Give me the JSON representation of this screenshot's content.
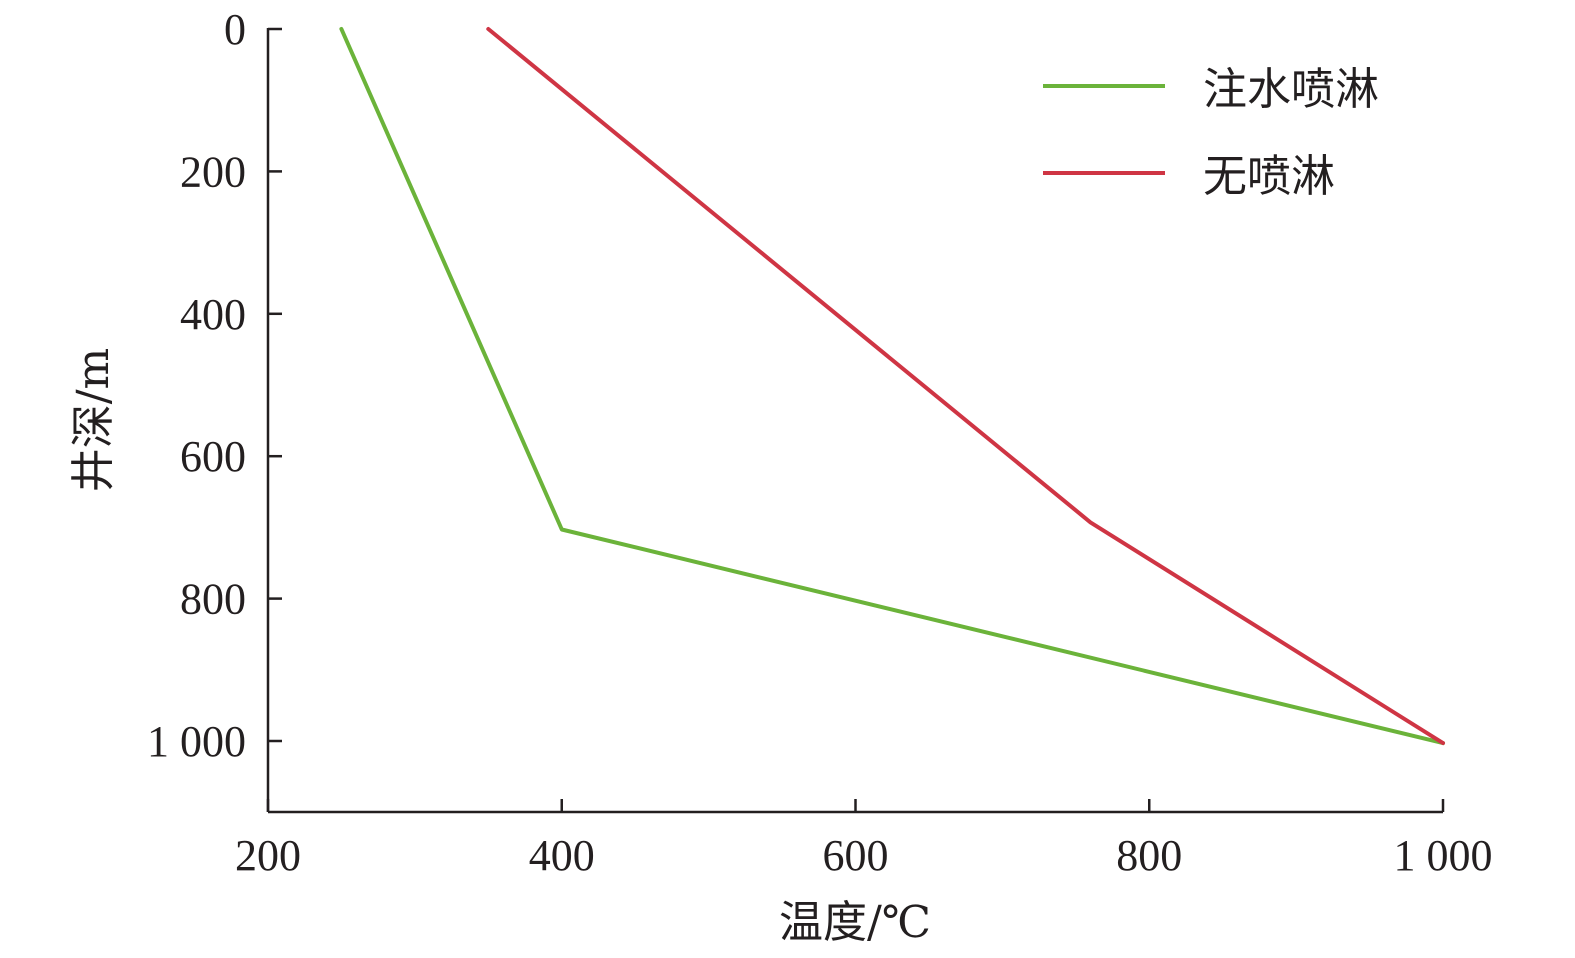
{
  "chart_data": {
    "type": "line",
    "xlabel": "温度/℃",
    "ylabel": "井深/m",
    "xlim": [
      200,
      1000
    ],
    "ylim": [
      0,
      1100
    ],
    "y_inverted": true,
    "x_ticks": [
      200,
      400,
      600,
      800,
      1000
    ],
    "x_tick_labels": [
      "200",
      "400",
      "600",
      "800",
      "1 000"
    ],
    "y_ticks": [
      0,
      200,
      400,
      600,
      800,
      1000
    ],
    "y_tick_labels": [
      "0",
      "200",
      "400",
      "600",
      "800",
      "1 000"
    ],
    "grid": false,
    "legend_position": "top-right",
    "series": [
      {
        "name": "注水喷淋",
        "color": "#6bb33a",
        "x": [
          250,
          400,
          1000
        ],
        "y": [
          0,
          703,
          1003
        ]
      },
      {
        "name": "无喷淋",
        "color": "#cf3544",
        "x": [
          350,
          760,
          1000
        ],
        "y": [
          0,
          693,
          1003
        ]
      }
    ]
  }
}
